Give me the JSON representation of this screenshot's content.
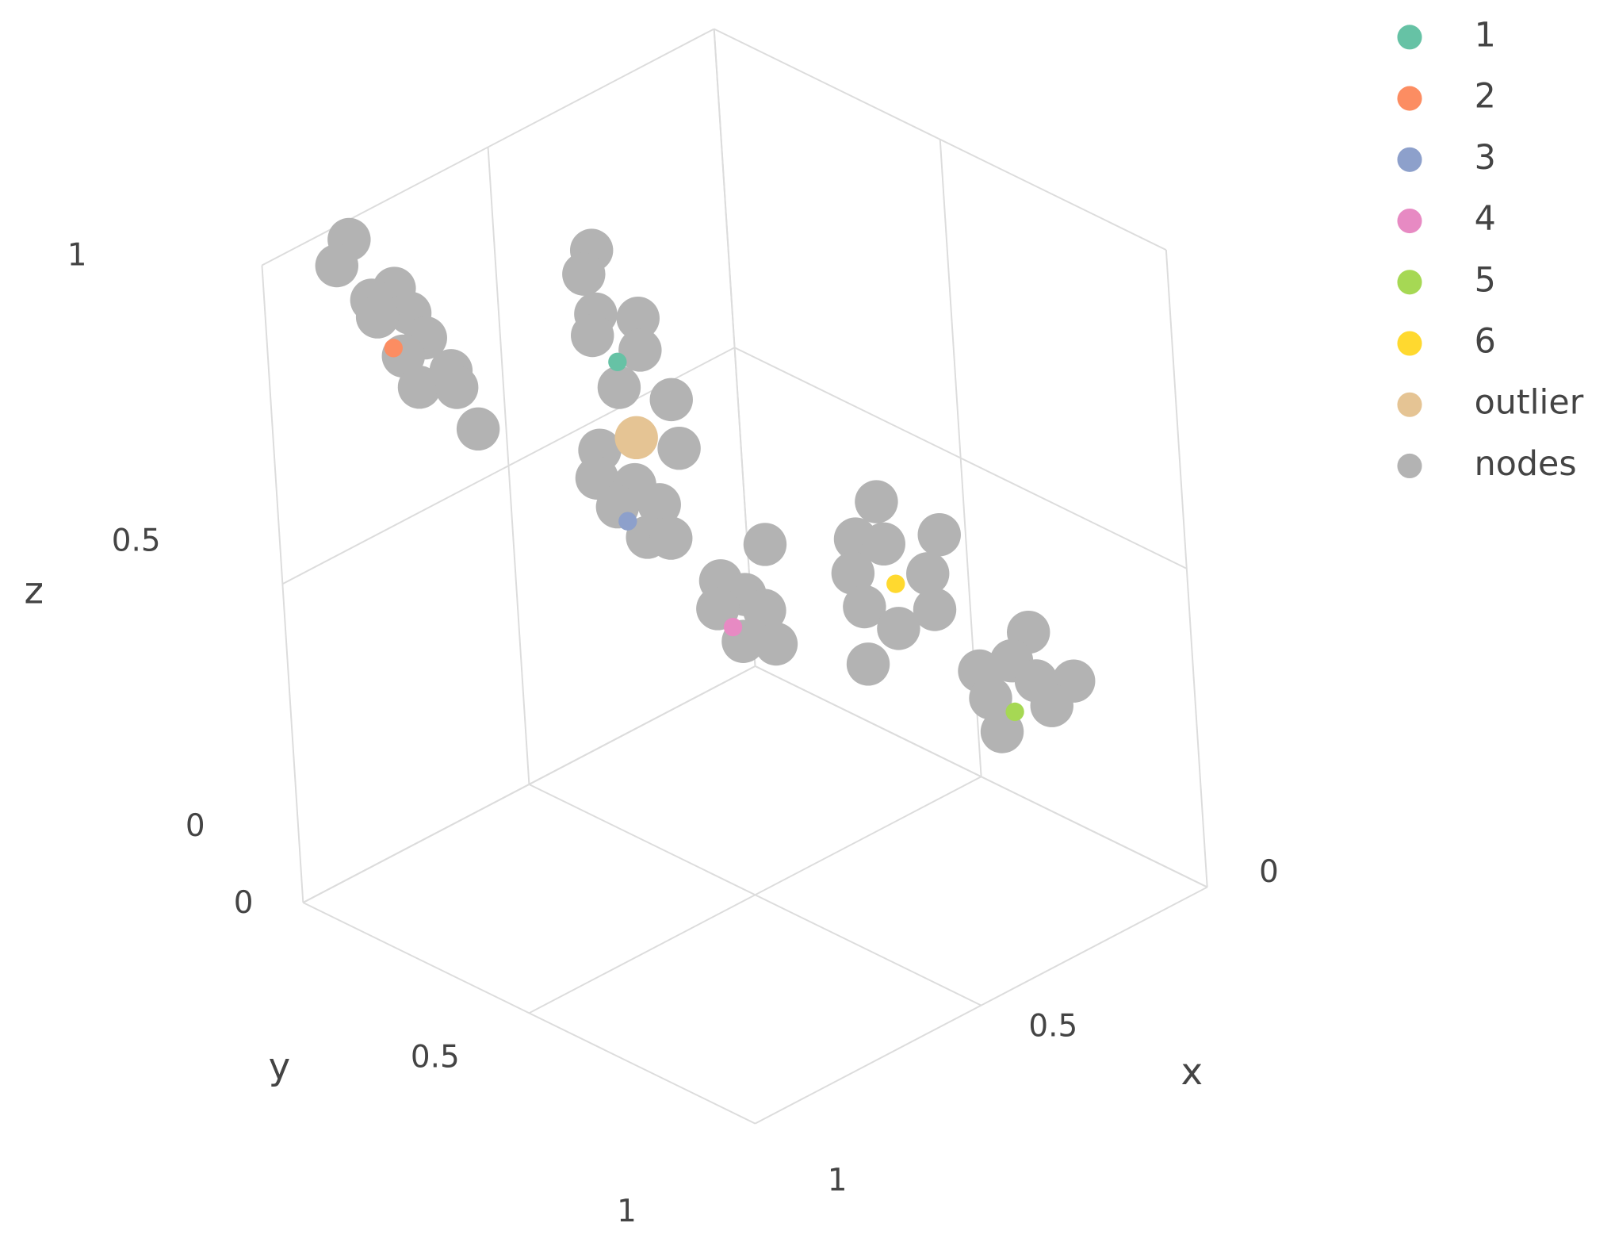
{
  "chart_data": {
    "type": "scatter3d",
    "xlabel": "x",
    "ylabel": "y",
    "zlabel": "z",
    "xlim": [
      0,
      1
    ],
    "ylim": [
      0,
      1
    ],
    "zlim": [
      0,
      1
    ],
    "xticks": [
      0,
      0.5,
      1
    ],
    "yticks": [
      0,
      0.5,
      1
    ],
    "zticks": [
      0,
      0.5,
      1
    ],
    "grid": true,
    "legend": "top-right",
    "series": [
      {
        "name": "1",
        "color": "#66c2a5",
        "x": [
          0.44
        ],
        "y": [
          0.2
        ],
        "z": [
          0.71
        ]
      },
      {
        "name": "2",
        "color": "#fc8d62",
        "x": [
          0.73
        ],
        "y": [
          0
        ],
        "z": [
          0.77
        ]
      },
      {
        "name": "3",
        "color": "#8da0cb",
        "x": [
          0.44
        ],
        "y": [
          0.2
        ],
        "z": [
          0.46
        ]
      },
      {
        "name": "4",
        "color": "#e78ac3",
        "x": [
          0.37
        ],
        "y": [
          0.35
        ],
        "z": [
          0.32
        ]
      },
      {
        "name": "5",
        "color": "#a6d854",
        "x": [
          0.2
        ],
        "y": [
          0.8
        ],
        "z": [
          0.28
        ]
      },
      {
        "name": "6",
        "color": "#ffd92f",
        "x": [
          0.25
        ],
        "y": [
          0.6
        ],
        "z": [
          0.43
        ]
      },
      {
        "name": "outlier",
        "color": "#e5c494",
        "x": [
          0.41
        ],
        "y": [
          0.2
        ],
        "z": [
          0.58
        ]
      },
      {
        "name": "nodes",
        "color": "#b3b3b3",
        "x": [
          0.81,
          0.84,
          0.72,
          0.77,
          0.69,
          0.76,
          0.66,
          0.71,
          0.61,
          0.68,
          0.6,
          0.56,
          0.48,
          0.5,
          0.48,
          0.39,
          0.49,
          0.39,
          0.44,
          0.33,
          0.49,
          0.32,
          0.5,
          0.42,
          0.37,
          0.4,
          0.35,
          0.46,
          0.29,
          0.39,
          0.34,
          0.3,
          0.4,
          0.28,
          0.35,
          0.28,
          0.33,
          0.15,
          0.34,
          0.18,
          0.32,
          0.17,
          0.25,
          0.32,
          0.27,
          0.16,
          0.2,
          0.27,
          0.07,
          0.25,
          0.12,
          0.23,
          0.15
        ],
        "y": [
          0,
          0,
          0,
          0,
          0,
          0,
          0,
          0,
          0,
          0,
          0,
          0,
          0.2,
          0.2,
          0.2,
          0.2,
          0.2,
          0.2,
          0.2,
          0.2,
          0.2,
          0.2,
          0.2,
          0.2,
          0.2,
          0.2,
          0.2,
          0.2,
          0.35,
          0.35,
          0.35,
          0.35,
          0.35,
          0.35,
          0.35,
          0.6,
          0.6,
          0.6,
          0.6,
          0.6,
          0.6,
          0.6,
          0.6,
          0.6,
          0.6,
          0.8,
          0.8,
          0.8,
          0.8,
          0.8,
          0.8,
          0.8,
          0.8
        ],
        "z": [
          0.97,
          0.94,
          0.86,
          0.86,
          0.81,
          0.83,
          0.76,
          0.75,
          0.69,
          0.69,
          0.66,
          0.58,
          0.9,
          0.87,
          0.8,
          0.76,
          0.77,
          0.71,
          0.67,
          0.61,
          0.59,
          0.53,
          0.55,
          0.51,
          0.46,
          0.42,
          0.4,
          0.49,
          0.42,
          0.4,
          0.36,
          0.32,
          0.36,
          0.26,
          0.29,
          0.57,
          0.53,
          0.47,
          0.48,
          0.42,
          0.42,
          0.36,
          0.36,
          0.33,
          0.5,
          0.39,
          0.36,
          0.37,
          0.28,
          0.32,
          0.26,
          0.26,
          0.31
        ]
      }
    ]
  }
}
